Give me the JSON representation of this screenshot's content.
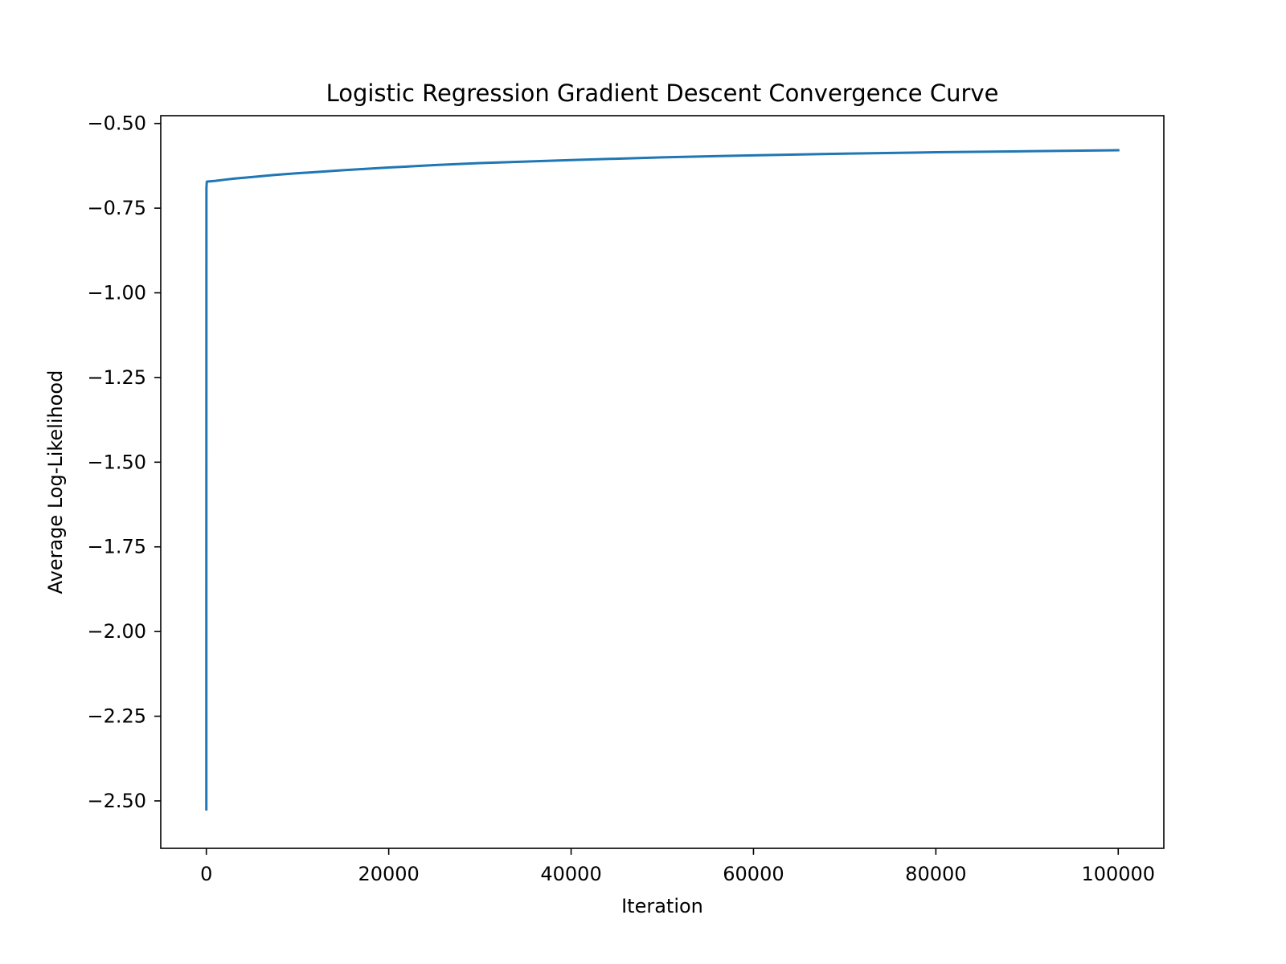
{
  "chart_data": {
    "type": "line",
    "title": "Logistic Regression Gradient Descent Convergence Curve",
    "xlabel": "Iteration",
    "ylabel": "Average Log-Likelihood",
    "xlim": [
      -5000,
      105000
    ],
    "ylim": [
      -2.64,
      -0.477
    ],
    "x_ticks": [
      0,
      20000,
      40000,
      60000,
      80000,
      100000
    ],
    "x_tick_labels": [
      "0",
      "20000",
      "40000",
      "60000",
      "80000",
      "100000"
    ],
    "y_ticks": [
      -0.5,
      -0.75,
      -1.0,
      -1.25,
      -1.5,
      -1.75,
      -2.0,
      -2.25,
      -2.5
    ],
    "y_tick_labels": [
      "−0.50",
      "−0.75",
      "−1.00",
      "−1.25",
      "−1.50",
      "−1.75",
      "−2.00",
      "−2.25",
      "−2.50"
    ],
    "grid": false,
    "legend": "none",
    "series": [
      {
        "color": "#1f77b4",
        "x": [
          0,
          1,
          10,
          50,
          100,
          500,
          1000,
          2000,
          3000,
          5000,
          7500,
          10000,
          15000,
          20000,
          25000,
          30000,
          40000,
          50000,
          60000,
          70000,
          80000,
          90000,
          100000
        ],
        "y": [
          -2.525,
          -1.8,
          -0.69,
          -0.672,
          -0.6716,
          -0.6705,
          -0.6695,
          -0.666,
          -0.663,
          -0.658,
          -0.652,
          -0.647,
          -0.638,
          -0.63,
          -0.623,
          -0.617,
          -0.608,
          -0.6,
          -0.594,
          -0.589,
          -0.585,
          -0.582,
          -0.579
        ]
      }
    ]
  }
}
